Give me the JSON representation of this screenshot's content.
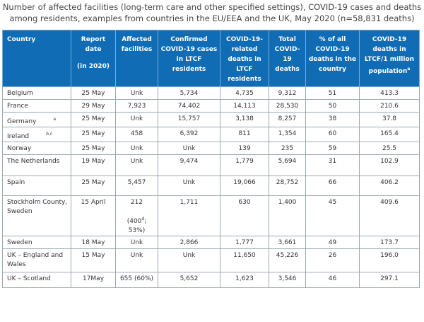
{
  "title": {
    "line1": "Number of affected facilities (long-term care and other specified settings), COVID-19 cases and deaths",
    "line2": "among residents, examples from countries in the EU/EEA and the UK, May 2020 (n=58,831 deaths)"
  },
  "headers": {
    "country": "Country",
    "report_date_1": "Report",
    "report_date_2": "date",
    "report_date_3": "(in 2020)",
    "affected_1": "Affected",
    "affected_2": "facilities",
    "confirmed": "Confirmed COVID-19 cases in LTCF residents",
    "related": "COVID-19-related deaths in LTCF residents",
    "total": "Total COVID-19 deaths",
    "pct": "% of all COVID-19 deaths in the country",
    "per_million": "COVID-19 deaths in LTCF/1 million population",
    "per_million_sup": "a"
  },
  "rows": [
    {
      "country": "Belgium",
      "sup": "",
      "date": "25 May",
      "affected": "Unk",
      "affected_note": "",
      "confirmed": "5,734",
      "related": "4,735",
      "total": "9,312",
      "pct": "51",
      "per_million": "413.3"
    },
    {
      "country": "France",
      "sup": "",
      "date": "29 May",
      "affected": "7,923",
      "affected_note": "",
      "confirmed": "74,402",
      "related": "14,113",
      "total": "28,530",
      "pct": "50",
      "per_million": "210.6"
    },
    {
      "country": "Germany",
      "sup": "a",
      "date": "25 May",
      "affected": "Unk",
      "affected_note": "",
      "confirmed": "15,757",
      "related": "3,138",
      "total": "8,257",
      "pct": "38",
      "per_million": "37.8"
    },
    {
      "country": "Ireland",
      "sup": "b,c",
      "date": "25 May",
      "affected": "458",
      "affected_note": "",
      "confirmed": "6,392",
      "related": "811",
      "total": "1,354",
      "pct": "60",
      "per_million": "165.4"
    },
    {
      "country": "Norway",
      "sup": "",
      "date": "25 May",
      "affected": "Unk",
      "affected_note": "",
      "confirmed": "Unk",
      "related": "139",
      "total": "235",
      "pct": "59",
      "per_million": "25.5"
    },
    {
      "country": "The Netherlands",
      "sup": "",
      "date": "19 May",
      "affected": "Unk",
      "affected_note": "",
      "confirmed": "9,474",
      "related": "1,779",
      "total": "5,694",
      "pct": "31",
      "per_million": "102.9"
    },
    {
      "country": "Spain",
      "sup": "",
      "date": "25 May",
      "affected": "5,457",
      "affected_note": "",
      "confirmed": "Unk",
      "related": "19,066",
      "total": "28,752",
      "pct": "66",
      "per_million": "406.2"
    },
    {
      "country": "Stockholm County, Sweden",
      "sup": "",
      "date": "15 April",
      "affected": "212",
      "affected_note": "(400",
      "affected_note_sup": "d",
      "affected_note_tail": "; 53%)",
      "confirmed": "1,711",
      "related": "630",
      "total": "1,400",
      "pct": "45",
      "per_million": "409.6"
    },
    {
      "country": "Sweden",
      "sup": "",
      "date": "18 May",
      "affected": "Unk",
      "affected_note": "",
      "confirmed": "2,866",
      "related": "1,777",
      "total": "3,661",
      "pct": "49",
      "per_million": "173.7"
    },
    {
      "country": "UK – England and Wales",
      "sup": "",
      "date": "15 May",
      "affected": "Unk",
      "affected_note": "",
      "confirmed": "Unk",
      "related": "11,650",
      "total": "45,226",
      "pct": "26",
      "per_million": "196.0"
    },
    {
      "country": "UK – Scotland",
      "sup": "",
      "date": "17May",
      "affected": "655 (60%)",
      "affected_note": "",
      "confirmed": "5,652",
      "related": "1,623",
      "total": "3,546",
      "pct": "46",
      "per_million": "297.1"
    }
  ],
  "colors": {
    "header_bg": "#0f6cb5",
    "header_text": "#ffffff",
    "border": "#9aa8b4"
  }
}
